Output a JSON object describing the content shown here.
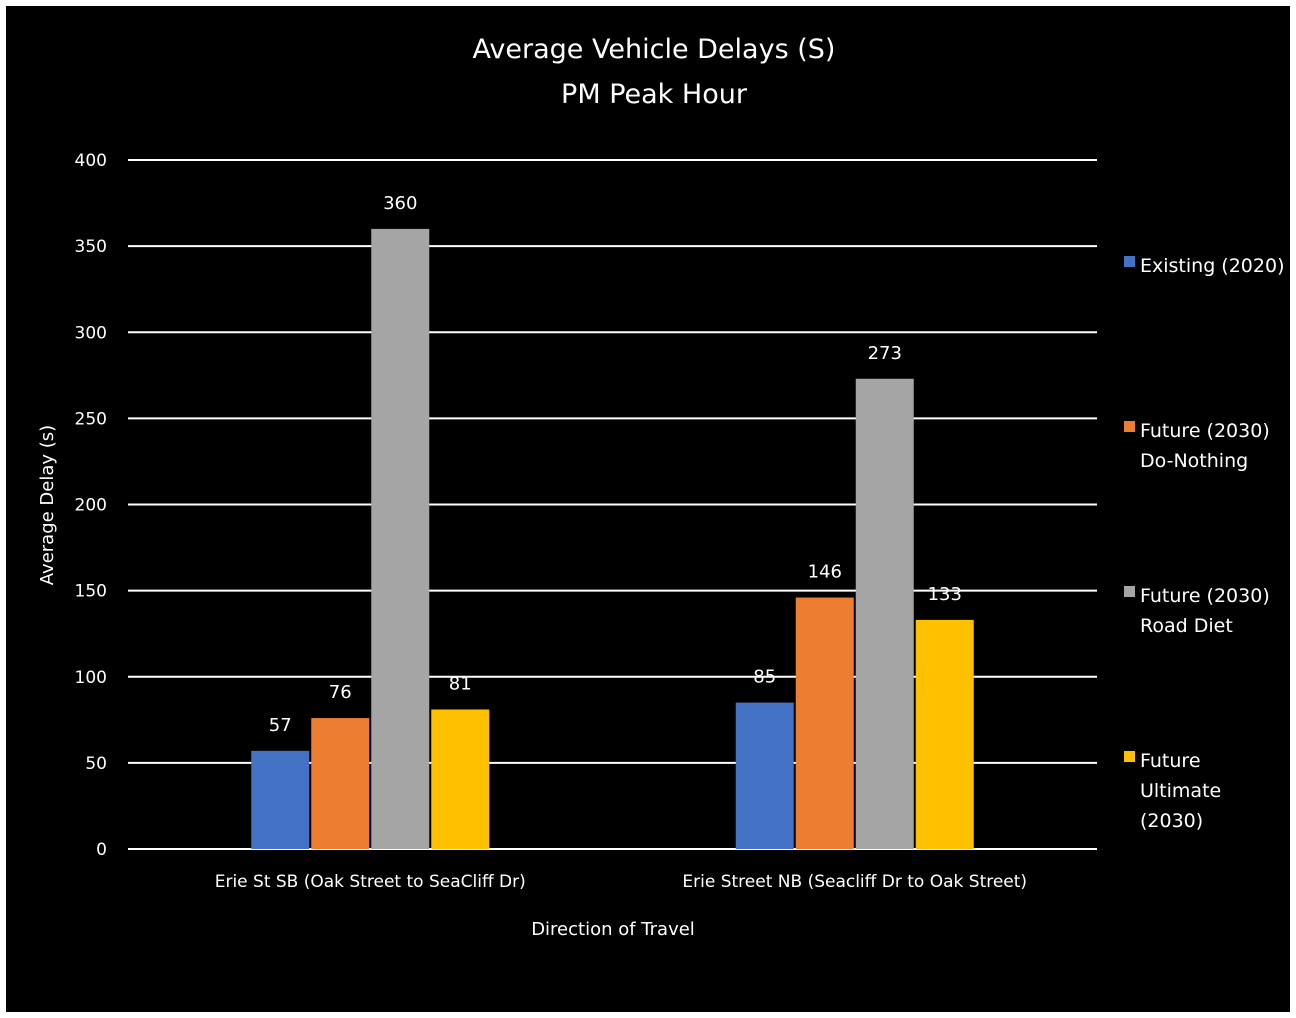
{
  "chart_data": {
    "type": "bar",
    "title_lines": [
      "Average Vehicle Delays (S)",
      "PM Peak Hour"
    ],
    "xlabel": "Direction of Travel",
    "ylabel": "Average Delay (s)",
    "ylim": [
      0,
      400
    ],
    "yticks": [
      0,
      50,
      100,
      150,
      200,
      250,
      300,
      350,
      400
    ],
    "grid": true,
    "legend_position": "right",
    "categories": [
      "Erie St SB (Oak Street to SeaCliff Dr)",
      "Erie Street NB (Seacliff Dr to Oak Street)"
    ],
    "series": [
      {
        "name_lines": [
          "Existing (2020)"
        ],
        "color": "#4472c4",
        "values": [
          57,
          85
        ]
      },
      {
        "name_lines": [
          "Future (2030)",
          "Do-Nothing"
        ],
        "color": "#ed7d31",
        "values": [
          76,
          146
        ]
      },
      {
        "name_lines": [
          "Future (2030)",
          "Road Diet"
        ],
        "color": "#a5a5a5",
        "values": [
          360,
          273
        ]
      },
      {
        "name_lines": [
          "Future",
          "Ultimate",
          "(2030)"
        ],
        "color": "#ffc000",
        "values": [
          81,
          133
        ]
      }
    ]
  }
}
